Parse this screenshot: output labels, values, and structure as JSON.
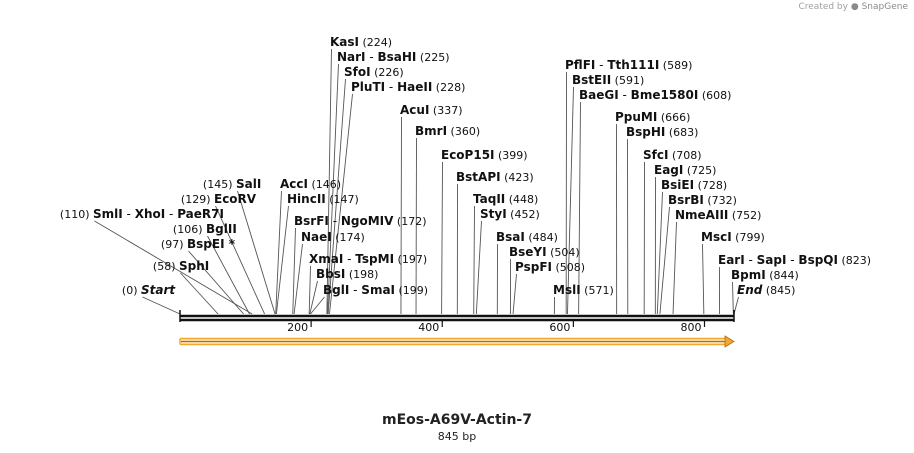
{
  "watermark": {
    "created_by": "Created by",
    "brand": "SnapGene"
  },
  "sequence": {
    "name": "mEos-A69V-Actin-7",
    "length_label": "845 bp",
    "length": 845
  },
  "axis_ticks": [
    "200",
    "400",
    "600",
    "800"
  ],
  "feature": {
    "color": "#f0a830",
    "start": 1,
    "end": 845
  },
  "labels": [
    {
      "pos": 0,
      "pos_text": "(0)",
      "names": [
        "Start"
      ],
      "italic": true,
      "pos_first": true
    },
    {
      "pos": 58,
      "pos_text": "(58)",
      "names": [
        "SphI"
      ],
      "pos_first": true
    },
    {
      "pos": 97,
      "pos_text": "(97)",
      "names": [
        "BspEI *"
      ],
      "pos_first": true
    },
    {
      "pos": 106,
      "pos_text": "(106)",
      "names": [
        "BglII"
      ],
      "pos_first": true
    },
    {
      "pos": 110,
      "pos_text": "(110)",
      "names": [
        "SmlI",
        "XhoI",
        "PaeR7I"
      ],
      "pos_first": true
    },
    {
      "pos": 129,
      "pos_text": "(129)",
      "names": [
        "EcoRV"
      ],
      "pos_first": true
    },
    {
      "pos": 145,
      "pos_text": "(145)",
      "names": [
        "SalI"
      ],
      "pos_first": true
    },
    {
      "pos": 146,
      "pos_text": "(146)",
      "names": [
        "AccI"
      ]
    },
    {
      "pos": 147,
      "pos_text": "(147)",
      "names": [
        "HincII"
      ]
    },
    {
      "pos": 172,
      "pos_text": "(172)",
      "names": [
        "BsrFI",
        "NgoMIV"
      ]
    },
    {
      "pos": 174,
      "pos_text": "(174)",
      "names": [
        "NaeI"
      ]
    },
    {
      "pos": 197,
      "pos_text": "(197)",
      "names": [
        "XmaI",
        "TspMI"
      ]
    },
    {
      "pos": 198,
      "pos_text": "(198)",
      "names": [
        "BbsI"
      ]
    },
    {
      "pos": 199,
      "pos_text": "(199)",
      "names": [
        "BglI",
        "SmaI"
      ]
    },
    {
      "pos": 224,
      "pos_text": "(224)",
      "names": [
        "KasI"
      ]
    },
    {
      "pos": 225,
      "pos_text": "(225)",
      "names": [
        "NarI",
        "BsaHI"
      ]
    },
    {
      "pos": 226,
      "pos_text": "(226)",
      "names": [
        "SfoI"
      ]
    },
    {
      "pos": 228,
      "pos_text": "(228)",
      "names": [
        "PluTI",
        "HaeII"
      ]
    },
    {
      "pos": 337,
      "pos_text": "(337)",
      "names": [
        "AcuI"
      ]
    },
    {
      "pos": 360,
      "pos_text": "(360)",
      "names": [
        "BmrI"
      ]
    },
    {
      "pos": 399,
      "pos_text": "(399)",
      "names": [
        "EcoP15I"
      ]
    },
    {
      "pos": 423,
      "pos_text": "(423)",
      "names": [
        "BstAPI"
      ]
    },
    {
      "pos": 448,
      "pos_text": "(448)",
      "names": [
        "TaqII"
      ]
    },
    {
      "pos": 452,
      "pos_text": "(452)",
      "names": [
        "StyI"
      ]
    },
    {
      "pos": 484,
      "pos_text": "(484)",
      "names": [
        "BsaI"
      ]
    },
    {
      "pos": 504,
      "pos_text": "(504)",
      "names": [
        "BseYI"
      ]
    },
    {
      "pos": 508,
      "pos_text": "(508)",
      "names": [
        "PspFI"
      ]
    },
    {
      "pos": 571,
      "pos_text": "(571)",
      "names": [
        "MslI"
      ]
    },
    {
      "pos": 589,
      "pos_text": "(589)",
      "names": [
        "PflFI",
        "Tth111I"
      ]
    },
    {
      "pos": 591,
      "pos_text": "(591)",
      "names": [
        "BstEII"
      ]
    },
    {
      "pos": 608,
      "pos_text": "(608)",
      "names": [
        "BaeGI",
        "Bme1580I"
      ]
    },
    {
      "pos": 666,
      "pos_text": "(666)",
      "names": [
        "PpuMI"
      ]
    },
    {
      "pos": 683,
      "pos_text": "(683)",
      "names": [
        "BspHI"
      ]
    },
    {
      "pos": 708,
      "pos_text": "(708)",
      "names": [
        "SfcI"
      ]
    },
    {
      "pos": 725,
      "pos_text": "(725)",
      "names": [
        "EagI"
      ]
    },
    {
      "pos": 728,
      "pos_text": "(728)",
      "names": [
        "BsiEI"
      ]
    },
    {
      "pos": 732,
      "pos_text": "(732)",
      "names": [
        "BsrBI"
      ]
    },
    {
      "pos": 752,
      "pos_text": "(752)",
      "names": [
        "NmeAIII"
      ]
    },
    {
      "pos": 799,
      "pos_text": "(799)",
      "names": [
        "MscI"
      ]
    },
    {
      "pos": 823,
      "pos_text": "(823)",
      "names": [
        "EarI",
        "SapI",
        "BspQI"
      ]
    },
    {
      "pos": 844,
      "pos_text": "(844)",
      "names": [
        "BpmI"
      ]
    },
    {
      "pos": 845,
      "pos_text": "(845)",
      "names": [
        "End"
      ],
      "italic": true
    }
  ]
}
